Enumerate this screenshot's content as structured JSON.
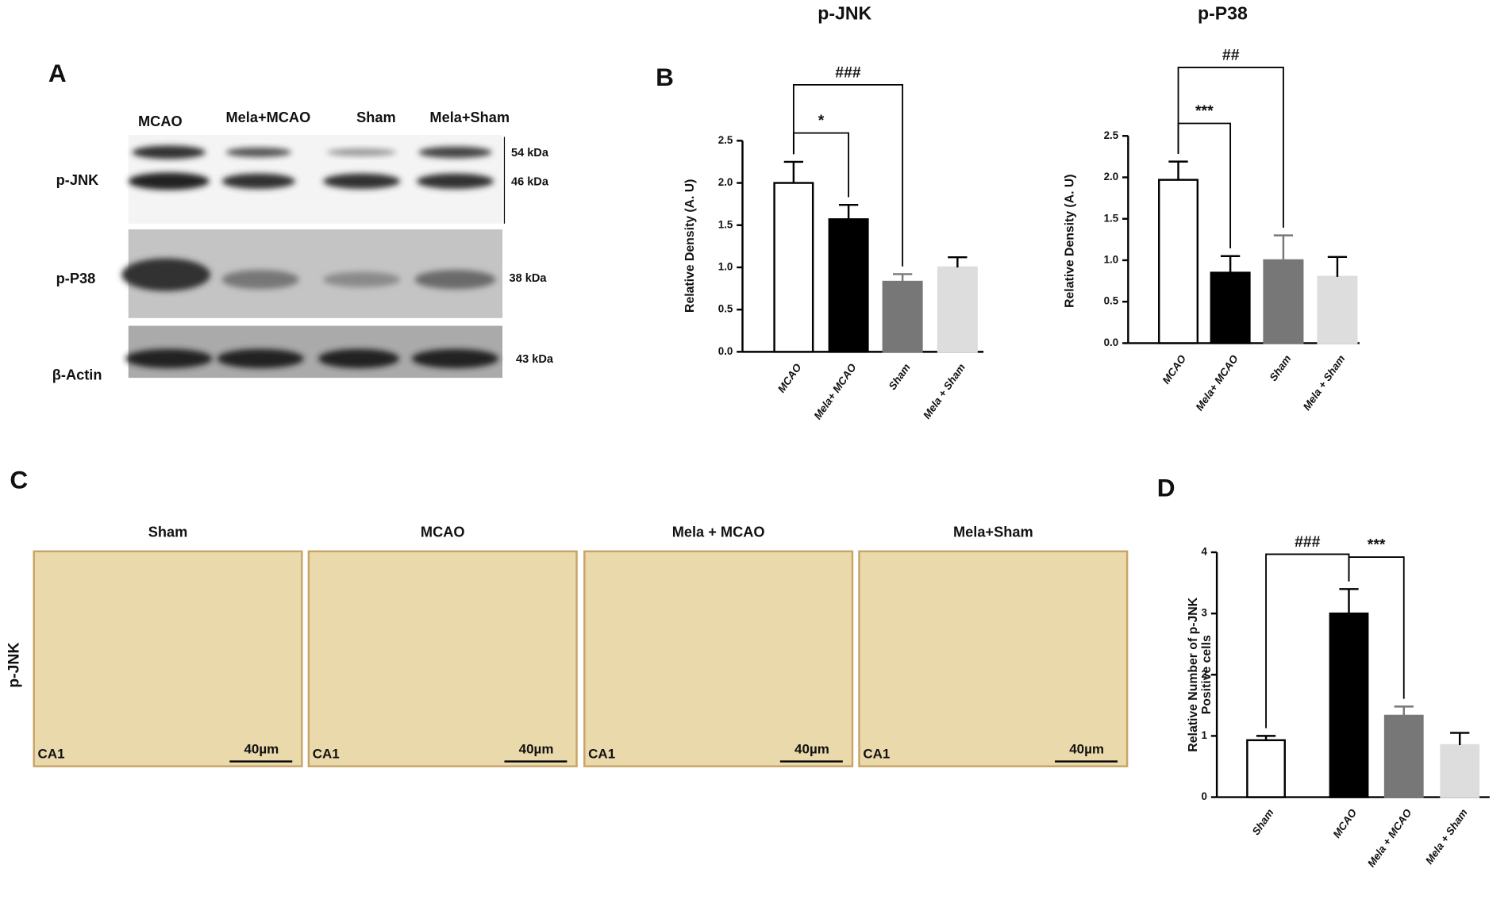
{
  "panel_a": {
    "letter": "A",
    "lanes": [
      "MCAO",
      "Mela+MCAO",
      "Sham",
      "Mela+Sham"
    ],
    "rows": [
      "p-JNK",
      "p-P38",
      "β-Actin"
    ],
    "kda": [
      "54 kDa",
      "46 kDa",
      "38 kDa",
      "43 kDa"
    ]
  },
  "panel_b": {
    "letter": "B"
  },
  "panel_c": {
    "letter": "C",
    "titles": [
      "Sham",
      "MCAO",
      "Mela + MCAO",
      "Mela+Sham"
    ],
    "row_label": "p-JNK",
    "region": "CA1",
    "scale": "40µm"
  },
  "panel_d": {
    "letter": "D"
  },
  "chart_data": [
    {
      "type": "bar",
      "title": "p-JNK",
      "y_label": [
        "Relative Density (A. U)"
      ],
      "categories": [
        "MCAO",
        "Mela+ MCAO",
        "Sham",
        "Mela + Sham"
      ],
      "values": [
        2.0,
        1.57,
        0.83,
        1.0
      ],
      "errors": [
        0.25,
        0.17,
        0.09,
        0.12
      ],
      "colors": [
        "#ffffff",
        "#000000",
        "#777777",
        "#dddddd"
      ],
      "ylim": [
        0,
        2.5
      ],
      "yticks": [
        {
          "value": 0,
          "label": "0.0"
        },
        0.5,
        {
          "value": 1,
          "label": "1.0"
        },
        1.5,
        {
          "value": 2,
          "label": "2.0"
        },
        2.5
      ],
      "annotations": [
        "*",
        "###"
      ]
    },
    {
      "type": "bar",
      "title": "p-P38",
      "y_label": [
        "Relative Density (A. U)"
      ],
      "categories": [
        "MCAO",
        "Mela+ MCAO",
        "Sham",
        "Mela + Sham"
      ],
      "values": [
        1.97,
        0.85,
        1.0,
        0.8
      ],
      "errors": [
        0.22,
        0.2,
        0.3,
        0.24
      ],
      "colors": [
        "#ffffff",
        "#000000",
        "#777777",
        "#dddddd"
      ],
      "ylim": [
        0,
        2.5
      ],
      "yticks": [
        {
          "value": 0,
          "label": "0.0"
        },
        0.5,
        {
          "value": 1,
          "label": "1.0"
        },
        1.5,
        {
          "value": 2,
          "label": "2.0"
        },
        2.5
      ],
      "annotations": [
        "***",
        "##"
      ]
    },
    {
      "type": "bar",
      "y_label": [
        "Relative Number of p-JNK",
        "Positive cells"
      ],
      "categories": [
        "Sham",
        "MCAO",
        "Mela + MCAO",
        "Mela + Sham"
      ],
      "values": [
        0.93,
        3.0,
        1.33,
        0.85
      ],
      "errors": [
        0.07,
        0.4,
        0.15,
        0.2
      ],
      "colors": [
        "#ffffff",
        "#000000",
        "#777777",
        "#dddddd"
      ],
      "ylim": [
        0,
        4
      ],
      "yticks": [
        0,
        1,
        2,
        3,
        4
      ],
      "annotations": [
        "###",
        "***"
      ]
    }
  ]
}
